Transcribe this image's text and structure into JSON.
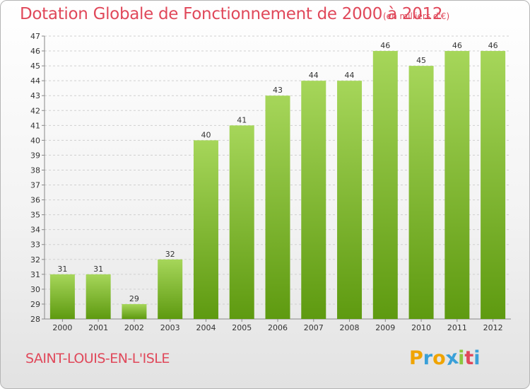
{
  "header": {
    "title": "Dotation Globale de Fonctionnement de 2000 à 2012",
    "subtitle": "(en milliers d'€)"
  },
  "footer": {
    "commune": "SAINT-LOUIS-EN-L'ISLE",
    "logo": {
      "letters": [
        "P",
        "r",
        "o",
        "x",
        "i",
        "t",
        "i"
      ],
      "colors": [
        "#f0a400",
        "#3aa0d8",
        "#f0a400",
        "#3aa0d8",
        "#8cc63f",
        "#e0485a",
        "#3aa0d8"
      ]
    }
  },
  "colors": {
    "bar_light": "#a6d65a",
    "bar_dark": "#5e9a10",
    "text": "#333333",
    "grid": "#d0d0d0"
  },
  "chart_data": {
    "type": "bar",
    "categories": [
      "2000",
      "2001",
      "2002",
      "2003",
      "2004",
      "2005",
      "2006",
      "2007",
      "2008",
      "2009",
      "2010",
      "2011",
      "2012"
    ],
    "values": [
      31,
      31,
      29,
      32,
      40,
      41,
      43,
      44,
      44,
      46,
      45,
      46,
      46
    ],
    "title": "Dotation Globale de Fonctionnement de 2000 à 2012",
    "subtitle": "(en milliers d'€)",
    "ylim": [
      28,
      47
    ],
    "yticks": [
      28,
      29,
      30,
      31,
      32,
      33,
      34,
      35,
      36,
      37,
      38,
      39,
      40,
      41,
      42,
      43,
      44,
      45,
      46,
      47
    ],
    "grid": true,
    "legend": "none"
  }
}
